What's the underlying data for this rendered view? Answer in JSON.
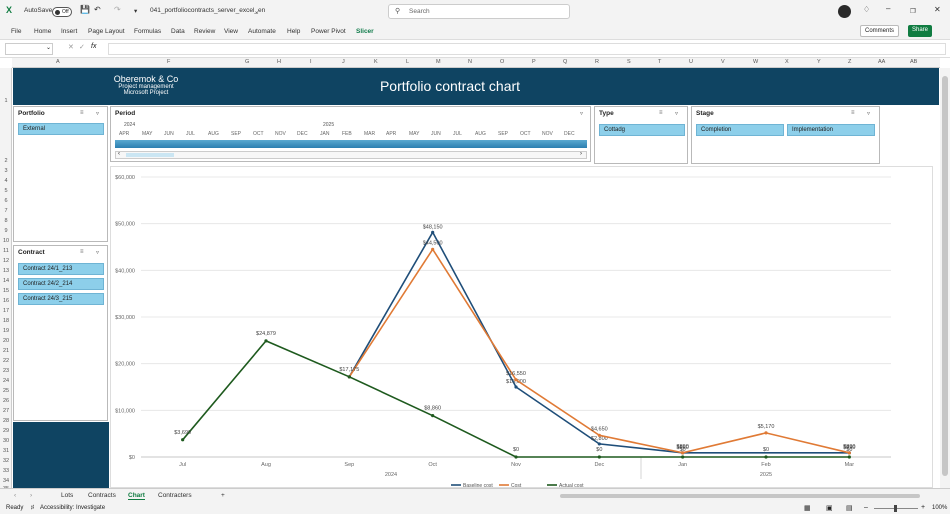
{
  "titlebar": {
    "autosave": "AutoSave",
    "toggle": "Off",
    "filename": "041_portfoliocontracts_server_excel_en",
    "search_placeholder": "Search"
  },
  "menu": [
    "File",
    "Home",
    "Insert",
    "Page Layout",
    "Formulas",
    "Data",
    "Review",
    "View",
    "Automate",
    "Help",
    "Power Pivot",
    "Slicer"
  ],
  "comments_label": "Comments",
  "share_label": "Share",
  "columns": [
    "A",
    "F",
    "G",
    "H",
    "I",
    "J",
    "K",
    "L",
    "M",
    "N",
    "O",
    "P",
    "Q",
    "R",
    "S",
    "T",
    "U",
    "V",
    "W",
    "X",
    "Y",
    "Z",
    "AA",
    "AB"
  ],
  "rows": [
    "1",
    "2",
    "3",
    "4",
    "5",
    "6",
    "7",
    "8",
    "9",
    "10",
    "11",
    "12",
    "13",
    "14",
    "15",
    "16",
    "17",
    "18",
    "19",
    "20",
    "21",
    "22",
    "23",
    "24",
    "25",
    "26",
    "27",
    "28",
    "29",
    "30",
    "31",
    "32",
    "33",
    "34",
    "35"
  ],
  "banner": {
    "company": "Oberemok & Co",
    "line2": "Project management",
    "line3": "Microsoft Project",
    "title": "Portfolio contract chart"
  },
  "slicers": {
    "portfolio": {
      "header": "Portfolio",
      "items": [
        "External"
      ]
    },
    "contract": {
      "header": "Contract",
      "items": [
        "Contract 24/1_213",
        "Contract 24/2_214",
        "Contract 24/3_215"
      ]
    },
    "period": {
      "header": "Period",
      "year1": "2024",
      "year2": "2025",
      "months": [
        "APR",
        "MAY",
        "JUN",
        "JUL",
        "AUG",
        "SEP",
        "OCT",
        "NOV",
        "DEC",
        "JAN",
        "FEB",
        "MAR",
        "APR",
        "MAY",
        "JUN",
        "JUL",
        "AUG",
        "SEP",
        "OCT",
        "NOV",
        "DEC"
      ]
    },
    "type": {
      "header": "Type",
      "items": [
        "Cottadg"
      ]
    },
    "stage": {
      "header": "Stage",
      "items": [
        "Completion",
        "Implementation"
      ]
    }
  },
  "chart_data": {
    "type": "line",
    "categories": [
      "Jul",
      "Aug",
      "Sep",
      "Oct",
      "Nov",
      "Dec",
      "Jan",
      "Feb",
      "Mar"
    ],
    "year_labels": [
      "2024",
      "2025"
    ],
    "y_ticks": [
      "$0",
      "$10,000",
      "$20,000",
      "$30,000",
      "$40,000",
      "$50,000",
      "$60,000"
    ],
    "ylim": [
      0,
      60000
    ],
    "series": [
      {
        "name": "Baseline cost",
        "color": "#1f4e79",
        "values": [
          null,
          null,
          17175,
          48150,
          15000,
          2800,
          890,
          null,
          890
        ],
        "labels": [
          "",
          "",
          "",
          "$48,150",
          "$15,000",
          "$2,800",
          "$890",
          "",
          "$890"
        ]
      },
      {
        "name": "Cost",
        "color": "#e07a35",
        "values": [
          null,
          null,
          17175,
          44500,
          16550,
          4650,
          890,
          5170,
          890
        ],
        "labels": [
          "",
          "",
          "",
          "$44,500",
          "$16,550",
          "$4,650",
          "$890",
          "$5,170",
          "$890"
        ]
      },
      {
        "name": "Actual cost",
        "color": "#1e5a1e",
        "values": [
          3690,
          24879,
          17175,
          8860,
          0,
          0,
          0,
          0,
          0
        ],
        "labels": [
          "$3,690",
          "$24,879",
          "$17,175",
          "$8,860",
          "$0",
          "$0",
          "$0",
          "$0",
          "$0"
        ]
      }
    ],
    "grid": true,
    "legend": "bottom"
  },
  "sheets": [
    "Lots",
    "Contracts",
    "Chart",
    "Contracters"
  ],
  "active_sheet": "Chart",
  "status": {
    "ready": "Ready",
    "accessibility": "Accessibility: Investigate",
    "zoom": "100%"
  }
}
